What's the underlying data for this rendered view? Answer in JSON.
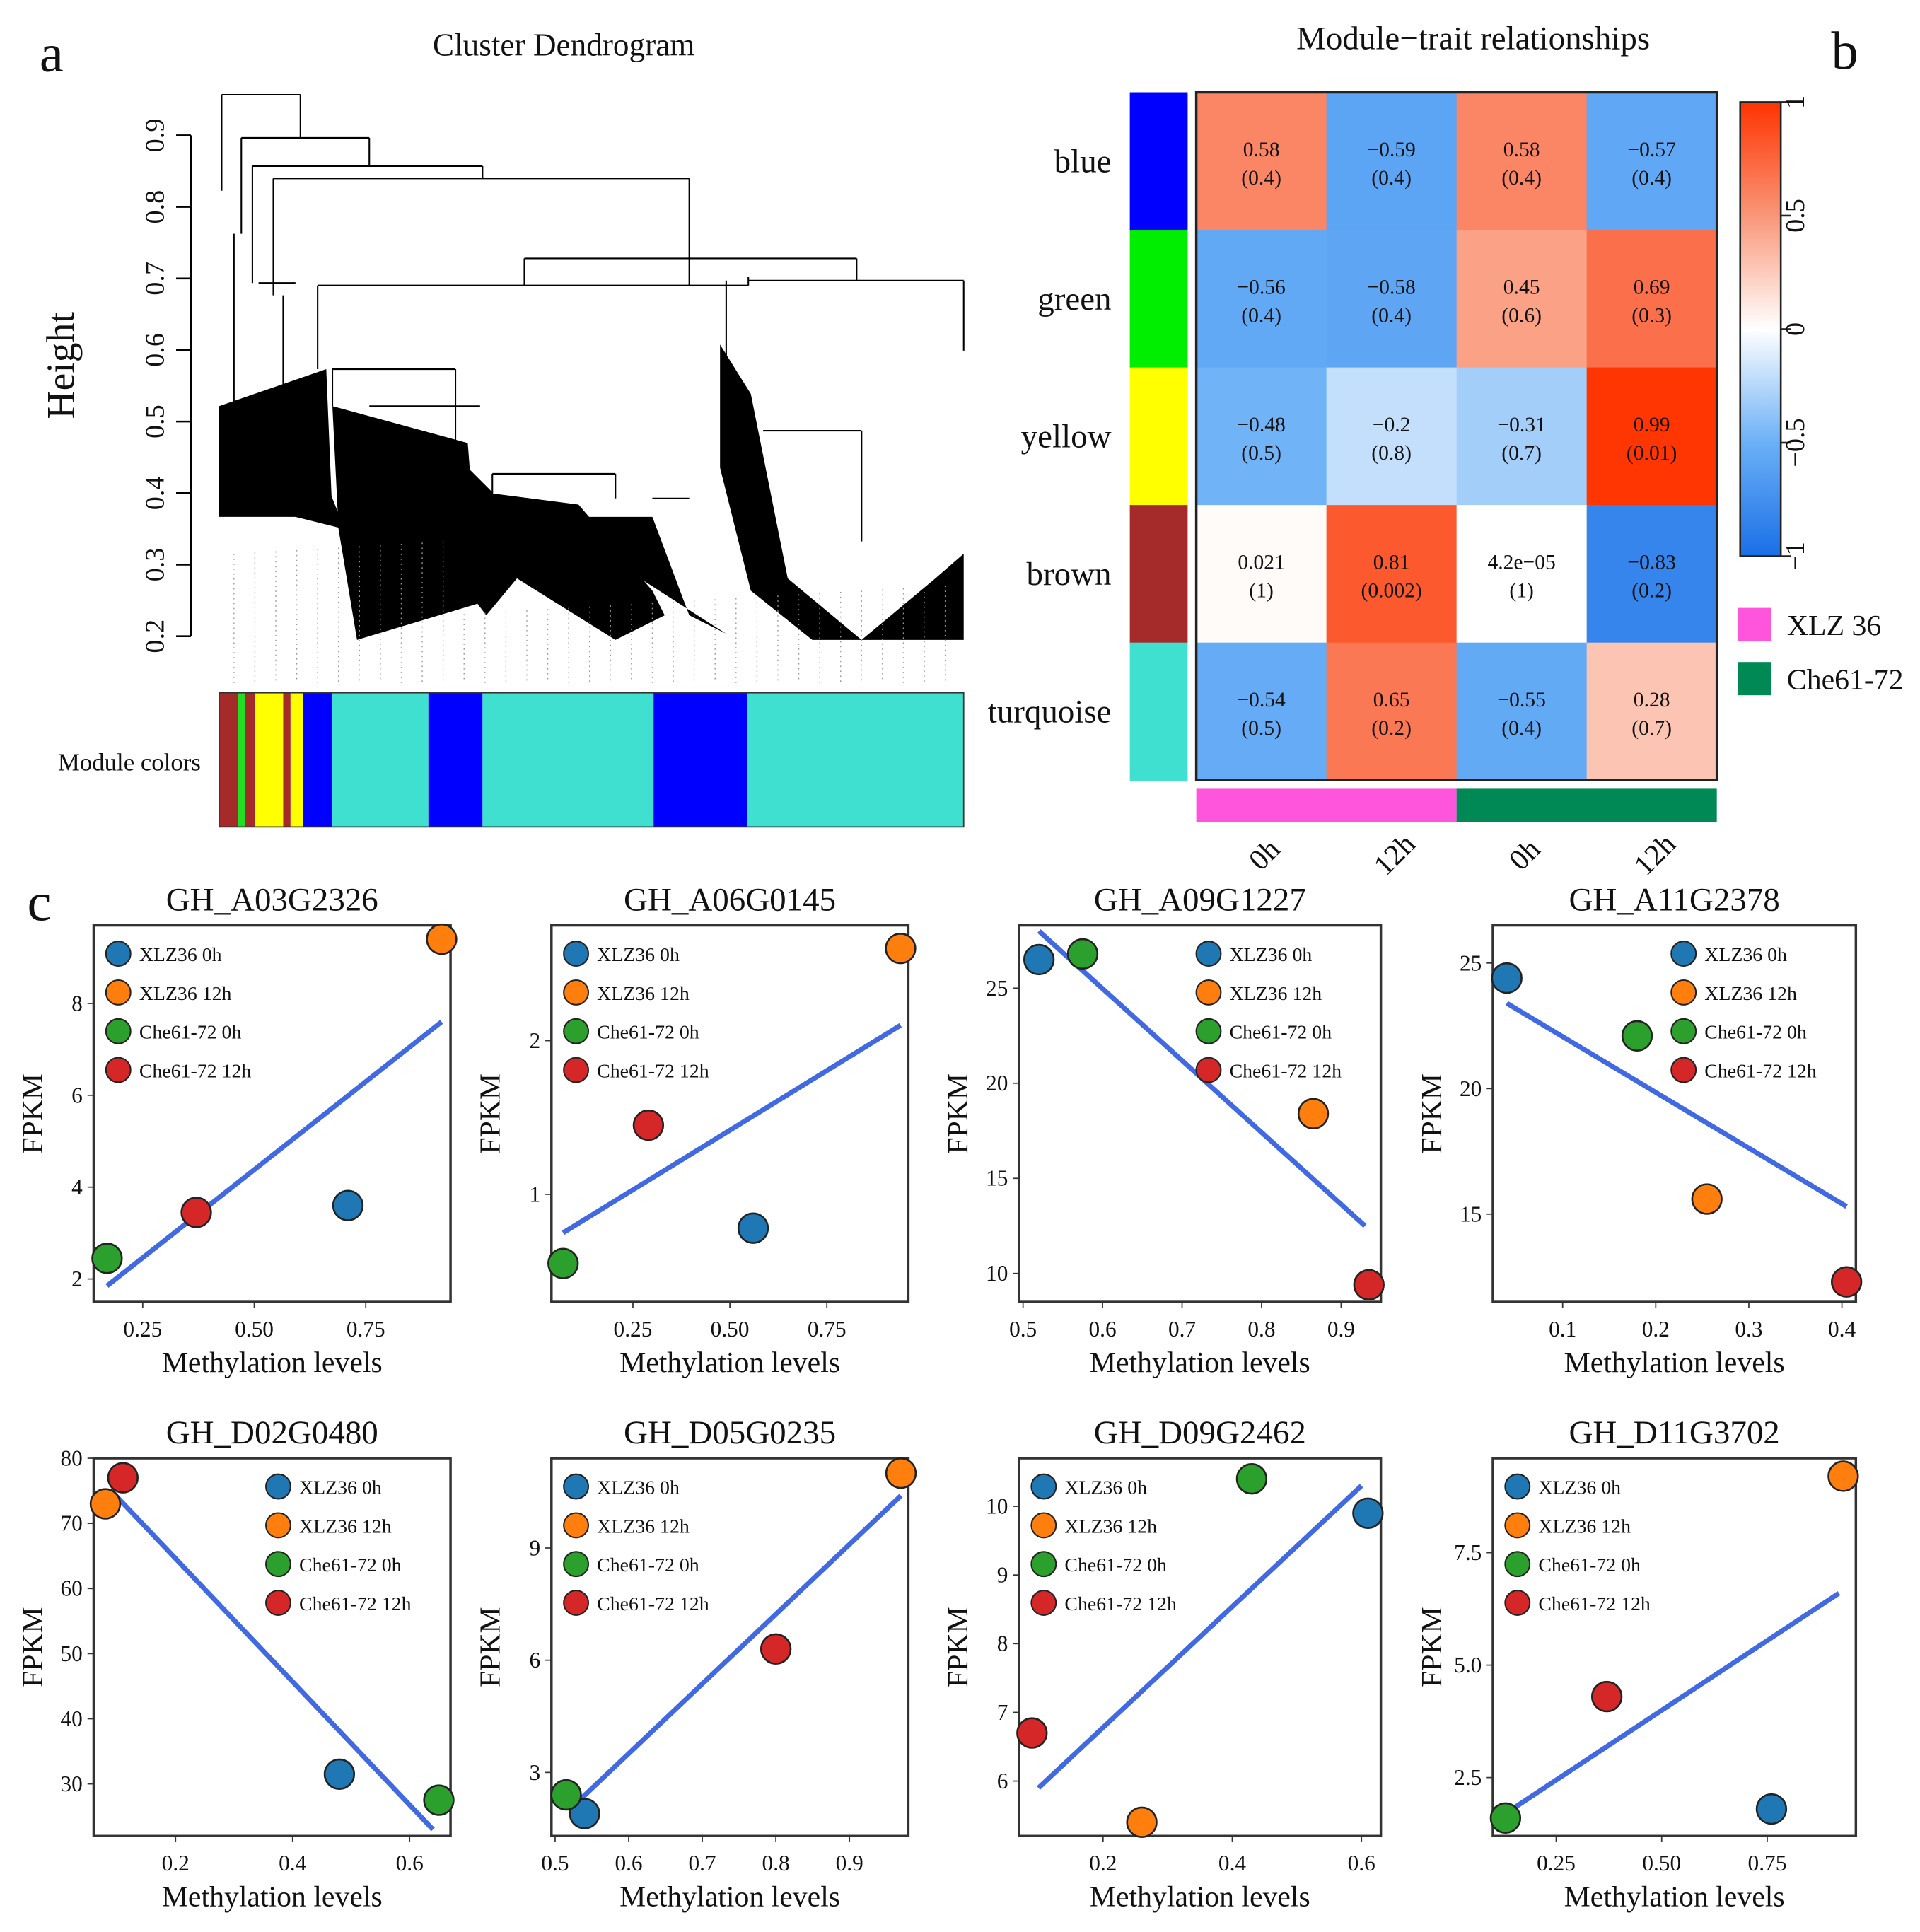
{
  "panel_labels": {
    "a": "a",
    "b": "b",
    "c": "c"
  },
  "chart_data": [
    {
      "id": "dendrogram",
      "type": "other",
      "title": "Cluster Dendrogram",
      "ylabel": "Height",
      "yticks": [
        "0.2",
        "0.3",
        "0.4",
        "0.5",
        "0.6",
        "0.7",
        "0.8",
        "0.9"
      ],
      "ylim": [
        0.2,
        0.9
      ],
      "module_colors_label": "Module colors",
      "module_color_sequence": [
        "brown",
        "green",
        "brown",
        "yellow",
        "brown",
        "yellow",
        "blue",
        "turquoise",
        "blue",
        "turquoise",
        "blue",
        "turquoise"
      ],
      "module_color_hex": {
        "brown": "#A52A2A",
        "green": "#22DD22",
        "yellow": "#FFFF00",
        "blue": "#0000FF",
        "turquoise": "#40E0D0"
      }
    },
    {
      "id": "module-trait",
      "type": "heatmap",
      "title": "Module−trait relationships",
      "rows": [
        "blue",
        "green",
        "yellow",
        "brown",
        "turquoise"
      ],
      "row_colors": [
        "#0000FF",
        "#00EE00",
        "#FFFF00",
        "#A52A2A",
        "#40E0D0"
      ],
      "columns": [
        "0h",
        "12h",
        "0h",
        "12h"
      ],
      "column_groups": [
        {
          "name": "XLZ 36",
          "color": "#FF55DD",
          "span": 2
        },
        {
          "name": "Che61-72",
          "color": "#008855",
          "span": 2
        }
      ],
      "values": [
        [
          0.58,
          -0.59,
          0.58,
          -0.57
        ],
        [
          -0.56,
          -0.58,
          0.45,
          0.69
        ],
        [
          -0.48,
          -0.2,
          -0.31,
          0.99
        ],
        [
          0.021,
          0.81,
          4.2e-05,
          -0.83
        ],
        [
          -0.54,
          0.65,
          -0.55,
          0.28
        ]
      ],
      "labels": [
        [
          "0.58",
          "−0.59",
          "0.58",
          "−0.57"
        ],
        [
          "−0.56",
          "−0.58",
          "0.45",
          "0.69"
        ],
        [
          "−0.48",
          "−0.2",
          "−0.31",
          "0.99"
        ],
        [
          "0.021",
          "0.81",
          "4.2e−05",
          "−0.83"
        ],
        [
          "−0.54",
          "0.65",
          "−0.55",
          "0.28"
        ]
      ],
      "pvalues": [
        [
          "(0.4)",
          "(0.4)",
          "(0.4)",
          "(0.4)"
        ],
        [
          "(0.4)",
          "(0.4)",
          "(0.6)",
          "(0.3)"
        ],
        [
          "(0.5)",
          "(0.8)",
          "(0.7)",
          "(0.01)"
        ],
        [
          "(1)",
          "(0.002)",
          "(1)",
          "(0.2)"
        ],
        [
          "(0.5)",
          "(0.2)",
          "(0.4)",
          "(0.7)"
        ]
      ],
      "colorbar": {
        "ticks": [
          "1",
          "0.5",
          "0",
          "−0.5",
          "−1"
        ],
        "range": [
          -1,
          1
        ]
      }
    },
    {
      "id": "GH_A03G2326",
      "type": "scatter",
      "title": "GH_A03G2326",
      "xlabel": "Methylation levels",
      "ylabel": "FPKM",
      "xlim": [
        0.14,
        0.94
      ],
      "ylim": [
        1.5,
        9.7
      ],
      "xticks": [
        0.25,
        0.5,
        0.75
      ],
      "xtick_labels": [
        "0.25",
        "0.50",
        "0.75"
      ],
      "yticks": [
        2,
        4,
        6,
        8
      ],
      "ytick_labels": [
        "2",
        "4",
        "6",
        "8"
      ],
      "legend": "top-left",
      "points": [
        {
          "series": "XLZ36 0h",
          "x": 0.71,
          "y": 3.6
        },
        {
          "series": "XLZ36 12h",
          "x": 0.92,
          "y": 9.4
        },
        {
          "series": "Che61-72 0h",
          "x": 0.17,
          "y": 2.45
        },
        {
          "series": "Che61-72 12h",
          "x": 0.37,
          "y": 3.45
        }
      ],
      "fit": [
        [
          0.17,
          1.85
        ],
        [
          0.92,
          7.6
        ]
      ]
    },
    {
      "id": "GH_A06G0145",
      "type": "scatter",
      "title": "GH_A06G0145",
      "xlabel": "Methylation levels",
      "ylabel": "FPKM",
      "xlim": [
        0.04,
        0.96
      ],
      "ylim": [
        0.3,
        2.75
      ],
      "xticks": [
        0.25,
        0.5,
        0.75
      ],
      "xtick_labels": [
        "0.25",
        "0.50",
        "0.75"
      ],
      "yticks": [
        1,
        2
      ],
      "ytick_labels": [
        "1",
        "2"
      ],
      "legend": "top-left",
      "points": [
        {
          "series": "XLZ36 0h",
          "x": 0.56,
          "y": 0.78
        },
        {
          "series": "XLZ36 12h",
          "x": 0.94,
          "y": 2.6
        },
        {
          "series": "Che61-72 0h",
          "x": 0.07,
          "y": 0.55
        },
        {
          "series": "Che61-72 12h",
          "x": 0.29,
          "y": 1.45
        }
      ],
      "fit": [
        [
          0.07,
          0.75
        ],
        [
          0.94,
          2.1
        ]
      ]
    },
    {
      "id": "GH_A09G1227",
      "type": "scatter",
      "title": "GH_A09G1227",
      "xlabel": "Methylation levels",
      "ylabel": "FPKM",
      "xlim": [
        0.495,
        0.95
      ],
      "ylim": [
        8.5,
        28.3
      ],
      "xticks": [
        0.5,
        0.6,
        0.7,
        0.8,
        0.9
      ],
      "xtick_labels": [
        "0.5",
        "0.6",
        "0.7",
        "0.8",
        "0.9"
      ],
      "yticks": [
        10,
        15,
        20,
        25
      ],
      "ytick_labels": [
        "10",
        "15",
        "20",
        "25"
      ],
      "legend": "top-right",
      "points": [
        {
          "series": "XLZ36 0h",
          "x": 0.52,
          "y": 26.5
        },
        {
          "series": "XLZ36 12h",
          "x": 0.865,
          "y": 18.4
        },
        {
          "series": "Che61-72 0h",
          "x": 0.575,
          "y": 26.8
        },
        {
          "series": "Che61-72 12h",
          "x": 0.935,
          "y": 9.4
        }
      ],
      "fit": [
        [
          0.52,
          28.0
        ],
        [
          0.93,
          12.5
        ]
      ]
    },
    {
      "id": "GH_A11G2378",
      "type": "scatter",
      "title": "GH_A11G2378",
      "xlabel": "Methylation levels",
      "ylabel": "FPKM",
      "xlim": [
        0.025,
        0.415
      ],
      "ylim": [
        11.5,
        26.5
      ],
      "xticks": [
        0.1,
        0.2,
        0.3,
        0.4
      ],
      "xtick_labels": [
        "0.1",
        "0.2",
        "0.3",
        "0.4"
      ],
      "yticks": [
        15,
        20,
        25
      ],
      "ytick_labels": [
        "15",
        "20",
        "25"
      ],
      "legend": "top-right",
      "points": [
        {
          "series": "XLZ36 0h",
          "x": 0.04,
          "y": 24.4
        },
        {
          "series": "XLZ36 12h",
          "x": 0.255,
          "y": 15.6
        },
        {
          "series": "Che61-72 0h",
          "x": 0.18,
          "y": 22.1
        },
        {
          "series": "Che61-72 12h",
          "x": 0.405,
          "y": 12.3
        }
      ],
      "fit": [
        [
          0.04,
          23.4
        ],
        [
          0.405,
          15.3
        ]
      ]
    },
    {
      "id": "GH_D02G0480",
      "type": "scatter",
      "title": "GH_D02G0480",
      "xlabel": "Methylation levels",
      "ylabel": "FPKM",
      "xlim": [
        0.06,
        0.67
      ],
      "ylim": [
        22,
        80
      ],
      "xticks": [
        0.2,
        0.4,
        0.6
      ],
      "xtick_labels": [
        "0.2",
        "0.4",
        "0.6"
      ],
      "yticks": [
        30,
        40,
        50,
        60,
        70,
        80
      ],
      "ytick_labels": [
        "30",
        "40",
        "50",
        "60",
        "70",
        "80"
      ],
      "legend": "top-right",
      "points": [
        {
          "series": "XLZ36 0h",
          "x": 0.48,
          "y": 31.5
        },
        {
          "series": "XLZ36 12h",
          "x": 0.08,
          "y": 73
        },
        {
          "series": "Che61-72 0h",
          "x": 0.65,
          "y": 27.5
        },
        {
          "series": "Che61-72 12h",
          "x": 0.11,
          "y": 77
        }
      ],
      "fit": [
        [
          0.09,
          75
        ],
        [
          0.64,
          23
        ]
      ]
    },
    {
      "id": "GH_D05G0235",
      "type": "scatter",
      "title": "GH_D05G0235",
      "xlabel": "Methylation levels",
      "ylabel": "FPKM",
      "xlim": [
        0.495,
        0.98
      ],
      "ylim": [
        1.3,
        11.4
      ],
      "xticks": [
        0.5,
        0.6,
        0.7,
        0.8,
        0.9
      ],
      "xtick_labels": [
        "0.5",
        "0.6",
        "0.7",
        "0.8",
        "0.9"
      ],
      "yticks": [
        3,
        6,
        9
      ],
      "ytick_labels": [
        "3",
        "6",
        "9"
      ],
      "legend": "top-left",
      "points": [
        {
          "series": "XLZ36 0h",
          "x": 0.54,
          "y": 1.9
        },
        {
          "series": "XLZ36 12h",
          "x": 0.97,
          "y": 11.0
        },
        {
          "series": "Che61-72 0h",
          "x": 0.515,
          "y": 2.4
        },
        {
          "series": "Che61-72 12h",
          "x": 0.8,
          "y": 6.3
        }
      ],
      "fit": [
        [
          0.53,
          2.2
        ],
        [
          0.97,
          10.4
        ]
      ]
    },
    {
      "id": "GH_D09G2462",
      "type": "scatter",
      "title": "GH_D09G2462",
      "xlabel": "Methylation levels",
      "ylabel": "FPKM",
      "xlim": [
        0.07,
        0.63
      ],
      "ylim": [
        5.2,
        10.7
      ],
      "xticks": [
        0.2,
        0.4,
        0.6
      ],
      "xtick_labels": [
        "0.2",
        "0.4",
        "0.6"
      ],
      "yticks": [
        6,
        7,
        8,
        9,
        10
      ],
      "ytick_labels": [
        "6",
        "7",
        "8",
        "9",
        "10"
      ],
      "legend": "top-left",
      "points": [
        {
          "series": "XLZ36 0h",
          "x": 0.61,
          "y": 9.9
        },
        {
          "series": "XLZ36 12h",
          "x": 0.26,
          "y": 5.4
        },
        {
          "series": "Che61-72 0h",
          "x": 0.43,
          "y": 10.4
        },
        {
          "series": "Che61-72 12h",
          "x": 0.09,
          "y": 6.7
        }
      ],
      "fit": [
        [
          0.1,
          5.9
        ],
        [
          0.6,
          10.3
        ]
      ]
    },
    {
      "id": "GH_D11G3702",
      "type": "scatter",
      "title": "GH_D11G3702",
      "xlabel": "Methylation levels",
      "ylabel": "FPKM",
      "xlim": [
        0.1,
        0.96
      ],
      "ylim": [
        1.2,
        9.6
      ],
      "xticks": [
        0.25,
        0.5,
        0.75
      ],
      "xtick_labels": [
        "0.25",
        "0.50",
        "0.75"
      ],
      "yticks": [
        2.5,
        5.0,
        7.5
      ],
      "ytick_labels": [
        "2.5",
        "5.0",
        "7.5"
      ],
      "legend": "top-left",
      "points": [
        {
          "series": "XLZ36 0h",
          "x": 0.76,
          "y": 1.8
        },
        {
          "series": "XLZ36 12h",
          "x": 0.93,
          "y": 9.2
        },
        {
          "series": "Che61-72 0h",
          "x": 0.13,
          "y": 1.6
        },
        {
          "series": "Che61-72 12h",
          "x": 0.37,
          "y": 4.3
        }
      ],
      "fit": [
        [
          0.13,
          1.7
        ],
        [
          0.92,
          6.6
        ]
      ]
    }
  ],
  "scatter_series": [
    {
      "name": "XLZ36 0h",
      "color": "#1F77B4"
    },
    {
      "name": "XLZ36 12h",
      "color": "#FF7F0E"
    },
    {
      "name": "Che61-72 0h",
      "color": "#2CA02C"
    },
    {
      "name": "Che61-72 12h",
      "color": "#D62728"
    }
  ],
  "fit_color": "#4169E1"
}
